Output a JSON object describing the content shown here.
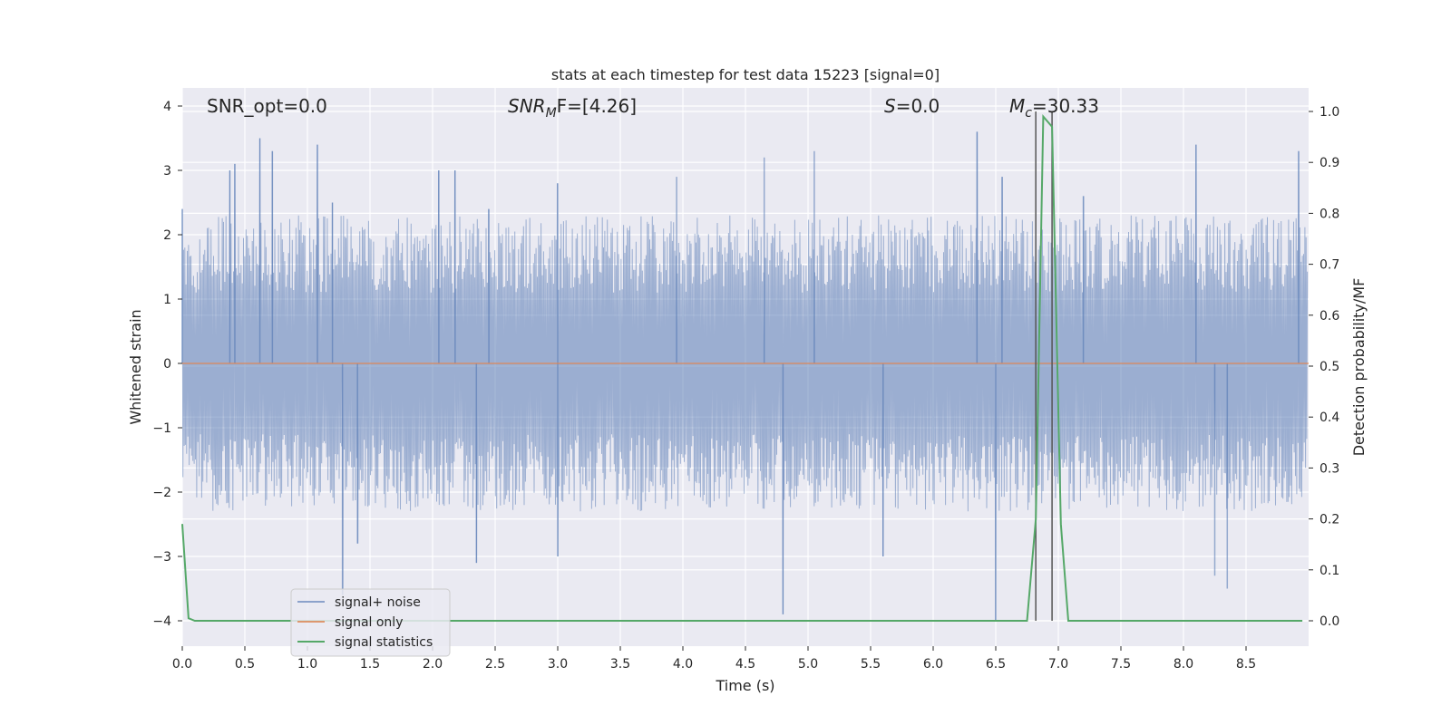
{
  "chart_data": {
    "type": "line",
    "title": "stats at each timestep for test data 15223 [signal=0]",
    "xlabel": "Time (s)",
    "ylabel_left": "Whitened strain",
    "ylabel_right": "Detection probability/MF",
    "xlim": [
      0.0,
      9.0
    ],
    "ylim_left": [
      -4.4,
      4.3
    ],
    "ylim_right": [
      -0.05,
      1.05
    ],
    "xticks": [
      "0.0",
      "0.5",
      "1.0",
      "1.5",
      "2.0",
      "2.5",
      "3.0",
      "3.5",
      "4.0",
      "4.5",
      "5.0",
      "5.5",
      "6.0",
      "6.5",
      "7.0",
      "7.5",
      "8.0",
      "8.5"
    ],
    "yticks_left": [
      "4",
      "3",
      "2",
      "1",
      "0",
      "−1",
      "−2",
      "−3",
      "−4"
    ],
    "yticks_right": [
      "1.0",
      "0.9",
      "0.8",
      "0.7",
      "0.6",
      "0.5",
      "0.4",
      "0.3",
      "0.2",
      "0.1",
      "0.0"
    ],
    "grid": true,
    "annotations": {
      "snr_opt": "SNR_opt=0.0",
      "snr_mf_main": "SNR",
      "snr_mf_sub": "M",
      "snr_mf_rest": "F=[4.26]",
      "s_main": "S",
      "s_rest": "=0.0",
      "mc_main": "M",
      "mc_sub": "c",
      "mc_rest": "=30.33"
    },
    "markers_x": [
      6.82,
      6.95
    ],
    "legend_position": "lower-left",
    "colors": {
      "signal_noise": "#4c72b0",
      "signal_only": "#dd8452",
      "signal_statistics": "#55a868",
      "background": "#eaeaf2",
      "grid": "#ffffff",
      "markers": "#555555"
    },
    "series": [
      {
        "name": "signal+ noise",
        "axis": "left",
        "style": "dense-noise",
        "envelope_upper_typical": 2.0,
        "envelope_lower_typical": -2.0,
        "peaks_upper": [
          [
            0.0,
            2.4
          ],
          [
            0.38,
            3.0
          ],
          [
            0.42,
            3.1
          ],
          [
            0.62,
            3.5
          ],
          [
            0.72,
            3.3
          ],
          [
            1.08,
            3.4
          ],
          [
            1.2,
            2.5
          ],
          [
            2.05,
            3.0
          ],
          [
            2.18,
            3.0
          ],
          [
            2.45,
            2.4
          ],
          [
            3.0,
            2.8
          ],
          [
            3.95,
            2.9
          ],
          [
            4.65,
            3.2
          ],
          [
            5.05,
            3.3
          ],
          [
            6.35,
            3.6
          ],
          [
            6.55,
            2.9
          ],
          [
            7.2,
            2.6
          ],
          [
            8.1,
            3.4
          ],
          [
            8.92,
            3.3
          ]
        ],
        "peaks_lower": [
          [
            1.28,
            -3.6
          ],
          [
            1.4,
            -2.8
          ],
          [
            2.35,
            -3.1
          ],
          [
            3.0,
            -3.0
          ],
          [
            4.8,
            -3.9
          ],
          [
            5.6,
            -3.0
          ],
          [
            6.5,
            -4.0
          ],
          [
            8.25,
            -3.3
          ],
          [
            8.35,
            -3.5
          ]
        ]
      },
      {
        "name": "signal only",
        "axis": "left",
        "x": [
          0.0,
          9.0
        ],
        "y": [
          0.0,
          0.0
        ]
      },
      {
        "name": "signal statistics",
        "axis": "right",
        "x": [
          0.0,
          0.05,
          0.1,
          0.15,
          6.75,
          6.82,
          6.88,
          6.95,
          7.02,
          7.08,
          8.95
        ],
        "y": [
          0.19,
          0.005,
          0.0,
          0.0,
          0.0,
          0.2,
          0.99,
          0.97,
          0.19,
          0.0,
          0.0
        ]
      }
    ]
  }
}
